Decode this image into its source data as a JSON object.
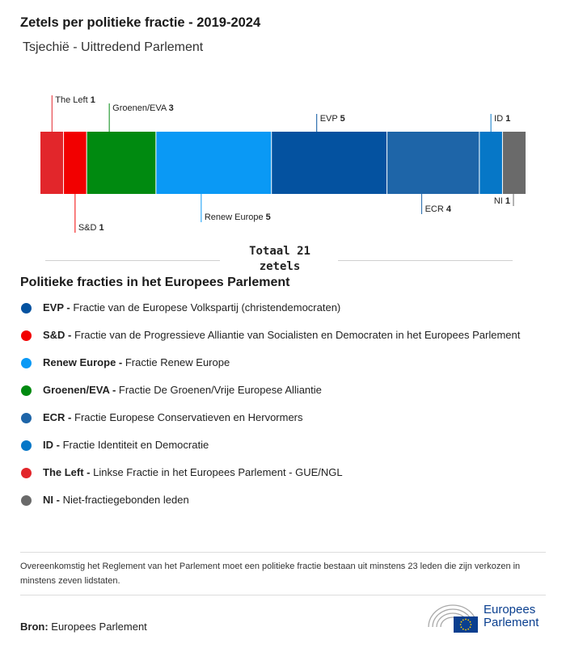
{
  "header": {
    "title": "Zetels per politieke fractie - 2019-2024",
    "subtitle": "Tsjechië - Uittredend Parlement"
  },
  "chart_data": {
    "type": "bar",
    "stacked": true,
    "orientation": "horizontal",
    "total": 21,
    "series": [
      {
        "name": "The Left",
        "value": 1,
        "color": "#e2262b",
        "label_side": "top"
      },
      {
        "name": "S&D",
        "value": 1,
        "color": "#f20000",
        "label_side": "bottom"
      },
      {
        "name": "Groenen/EVA",
        "value": 3,
        "color": "#008a10",
        "label_side": "top"
      },
      {
        "name": "Renew Europe",
        "value": 5,
        "color": "#0a99f5",
        "label_side": "bottom"
      },
      {
        "name": "EVP",
        "value": 5,
        "color": "#0452a0",
        "label_side": "top"
      },
      {
        "name": "ECR",
        "value": 4,
        "color": "#1e65a8",
        "label_side": "bottom"
      },
      {
        "name": "ID",
        "value": 1,
        "color": "#0677c7",
        "label_side": "top"
      },
      {
        "name": "NI",
        "value": 1,
        "color": "#6a6a6a",
        "label_side": "bottom"
      }
    ]
  },
  "total": {
    "line1": "Totaal 21",
    "line2": "zetels"
  },
  "legend": {
    "title": "Politieke fracties in het Europees Parlement",
    "items": [
      {
        "abbr": "EVP -",
        "desc": " Fractie van de Europese Volkspartij (christendemocraten)",
        "color": "#0452a0"
      },
      {
        "abbr": "S&D -",
        "desc": " Fractie van de Progressieve Alliantie van Socialisten en Democraten in het Europees Parlement",
        "color": "#f20000"
      },
      {
        "abbr": "Renew Europe -",
        "desc": " Fractie Renew Europe",
        "color": "#0a99f5"
      },
      {
        "abbr": "Groenen/EVA -",
        "desc": " Fractie De Groenen/Vrije Europese Alliantie",
        "color": "#008a10"
      },
      {
        "abbr": "ECR -",
        "desc": " Fractie Europese Conservatieven en Hervormers",
        "color": "#1e65a8"
      },
      {
        "abbr": "ID -",
        "desc": " Fractie Identiteit en Democratie",
        "color": "#0677c7"
      },
      {
        "abbr": "The Left -",
        "desc": " Linkse Fractie in het Europees Parlement - GUE/NGL",
        "color": "#e2262b"
      },
      {
        "abbr": "NI -",
        "desc": " Niet-fractiegebonden leden",
        "color": "#6a6a6a"
      }
    ]
  },
  "footer": {
    "note": "Overeenkomstig het Reglement van het Parlement moet een politieke fractie bestaan uit minstens 23 leden die zijn verkozen in minstens zeven lidstaten.",
    "source_label": "Bron:",
    "source_value": " Europees Parlement",
    "logo_line1": "Europees",
    "logo_line2": "Parlement"
  }
}
